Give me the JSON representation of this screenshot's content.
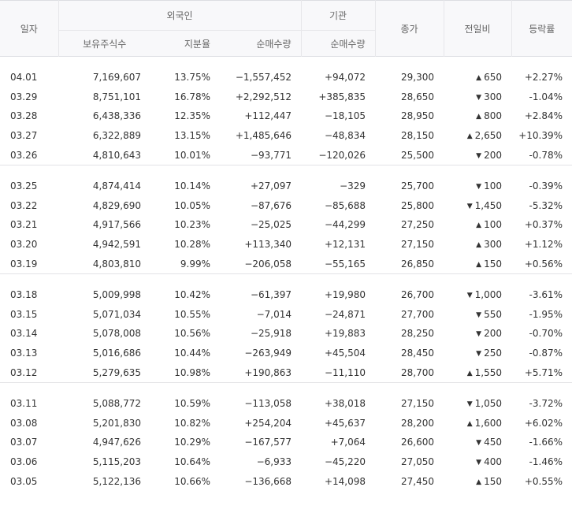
{
  "headers": {
    "date": "일자",
    "foreign": "외국인",
    "institution": "기관",
    "close": "종가",
    "change": "전일비",
    "rate": "등락률",
    "holdings": "보유주식수",
    "share": "지분율",
    "net_foreign": "순매수량",
    "net_inst": "순매수량"
  },
  "groups": [
    [
      {
        "date": "04.01",
        "holdings": "7,169,607",
        "share": "13.75%",
        "foreign": "−1,557,452",
        "foreign_dir": "down",
        "inst": "+94,072",
        "inst_dir": "up",
        "close": "29,300",
        "close_dir": "up",
        "change": "650",
        "change_dir": "up",
        "rate": "+2.27%",
        "rate_dir": "up"
      },
      {
        "date": "03.29",
        "holdings": "8,751,101",
        "share": "16.78%",
        "foreign": "+2,292,512",
        "foreign_dir": "up",
        "inst": "+385,835",
        "inst_dir": "up",
        "close": "28,650",
        "close_dir": "down",
        "change": "300",
        "change_dir": "down",
        "rate": "-1.04%",
        "rate_dir": "down"
      },
      {
        "date": "03.28",
        "holdings": "6,438,336",
        "share": "12.35%",
        "foreign": "+112,447",
        "foreign_dir": "up",
        "inst": "−18,105",
        "inst_dir": "down",
        "close": "28,950",
        "close_dir": "up",
        "change": "800",
        "change_dir": "up",
        "rate": "+2.84%",
        "rate_dir": "up"
      },
      {
        "date": "03.27",
        "holdings": "6,322,889",
        "share": "13.15%",
        "foreign": "+1,485,646",
        "foreign_dir": "up",
        "inst": "−48,834",
        "inst_dir": "down",
        "close": "28,150",
        "close_dir": "up",
        "change": "2,650",
        "change_dir": "up",
        "rate": "+10.39%",
        "rate_dir": "up"
      },
      {
        "date": "03.26",
        "holdings": "4,810,643",
        "share": "10.01%",
        "foreign": "−93,771",
        "foreign_dir": "down",
        "inst": "−120,026",
        "inst_dir": "down",
        "close": "25,500",
        "close_dir": "down",
        "change": "200",
        "change_dir": "down",
        "rate": "-0.78%",
        "rate_dir": "down"
      }
    ],
    [
      {
        "date": "03.25",
        "holdings": "4,874,414",
        "share": "10.14%",
        "foreign": "+27,097",
        "foreign_dir": "up",
        "inst": "−329",
        "inst_dir": "down",
        "close": "25,700",
        "close_dir": "down",
        "change": "100",
        "change_dir": "down",
        "rate": "-0.39%",
        "rate_dir": "down"
      },
      {
        "date": "03.22",
        "holdings": "4,829,690",
        "share": "10.05%",
        "foreign": "−87,676",
        "foreign_dir": "down",
        "inst": "−85,688",
        "inst_dir": "down",
        "close": "25,800",
        "close_dir": "down",
        "change": "1,450",
        "change_dir": "down",
        "rate": "-5.32%",
        "rate_dir": "down"
      },
      {
        "date": "03.21",
        "holdings": "4,917,566",
        "share": "10.23%",
        "foreign": "−25,025",
        "foreign_dir": "down",
        "inst": "−44,299",
        "inst_dir": "down",
        "close": "27,250",
        "close_dir": "up",
        "change": "100",
        "change_dir": "up",
        "rate": "+0.37%",
        "rate_dir": "up"
      },
      {
        "date": "03.20",
        "holdings": "4,942,591",
        "share": "10.28%",
        "foreign": "+113,340",
        "foreign_dir": "up",
        "inst": "+12,131",
        "inst_dir": "up",
        "close": "27,150",
        "close_dir": "up",
        "change": "300",
        "change_dir": "up",
        "rate": "+1.12%",
        "rate_dir": "up"
      },
      {
        "date": "03.19",
        "holdings": "4,803,810",
        "share": "9.99%",
        "foreign": "−206,058",
        "foreign_dir": "down",
        "inst": "−55,165",
        "inst_dir": "down",
        "close": "26,850",
        "close_dir": "up",
        "change": "150",
        "change_dir": "up",
        "rate": "+0.56%",
        "rate_dir": "up"
      }
    ],
    [
      {
        "date": "03.18",
        "holdings": "5,009,998",
        "share": "10.42%",
        "foreign": "−61,397",
        "foreign_dir": "down",
        "inst": "+19,980",
        "inst_dir": "up",
        "close": "26,700",
        "close_dir": "down",
        "change": "1,000",
        "change_dir": "down",
        "rate": "-3.61%",
        "rate_dir": "down"
      },
      {
        "date": "03.15",
        "holdings": "5,071,034",
        "share": "10.55%",
        "foreign": "−7,014",
        "foreign_dir": "down",
        "inst": "−24,871",
        "inst_dir": "down",
        "close": "27,700",
        "close_dir": "down",
        "change": "550",
        "change_dir": "down",
        "rate": "-1.95%",
        "rate_dir": "down"
      },
      {
        "date": "03.14",
        "holdings": "5,078,008",
        "share": "10.56%",
        "foreign": "−25,918",
        "foreign_dir": "down",
        "inst": "+19,883",
        "inst_dir": "up",
        "close": "28,250",
        "close_dir": "down",
        "change": "200",
        "change_dir": "down",
        "rate": "-0.70%",
        "rate_dir": "down"
      },
      {
        "date": "03.13",
        "holdings": "5,016,686",
        "share": "10.44%",
        "foreign": "−263,949",
        "foreign_dir": "down",
        "inst": "+45,504",
        "inst_dir": "up",
        "close": "28,450",
        "close_dir": "down",
        "change": "250",
        "change_dir": "down",
        "rate": "-0.87%",
        "rate_dir": "down"
      },
      {
        "date": "03.12",
        "holdings": "5,279,635",
        "share": "10.98%",
        "foreign": "+190,863",
        "foreign_dir": "up",
        "inst": "−11,110",
        "inst_dir": "down",
        "close": "28,700",
        "close_dir": "up",
        "change": "1,550",
        "change_dir": "up",
        "rate": "+5.71%",
        "rate_dir": "up"
      }
    ],
    [
      {
        "date": "03.11",
        "holdings": "5,088,772",
        "share": "10.59%",
        "foreign": "−113,058",
        "foreign_dir": "down",
        "inst": "+38,018",
        "inst_dir": "up",
        "close": "27,150",
        "close_dir": "down",
        "change": "1,050",
        "change_dir": "down",
        "rate": "-3.72%",
        "rate_dir": "down"
      },
      {
        "date": "03.08",
        "holdings": "5,201,830",
        "share": "10.82%",
        "foreign": "+254,204",
        "foreign_dir": "up",
        "inst": "+45,637",
        "inst_dir": "up",
        "close": "28,200",
        "close_dir": "up",
        "change": "1,600",
        "change_dir": "up",
        "rate": "+6.02%",
        "rate_dir": "up"
      },
      {
        "date": "03.07",
        "holdings": "4,947,626",
        "share": "10.29%",
        "foreign": "−167,577",
        "foreign_dir": "down",
        "inst": "+7,064",
        "inst_dir": "up",
        "close": "26,600",
        "close_dir": "down",
        "change": "450",
        "change_dir": "down",
        "rate": "-1.66%",
        "rate_dir": "down"
      },
      {
        "date": "03.06",
        "holdings": "5,115,203",
        "share": "10.64%",
        "foreign": "−6,933",
        "foreign_dir": "down",
        "inst": "−45,220",
        "inst_dir": "down",
        "close": "27,050",
        "close_dir": "down",
        "change": "400",
        "change_dir": "down",
        "rate": "-1.46%",
        "rate_dir": "down"
      },
      {
        "date": "03.05",
        "holdings": "5,122,136",
        "share": "10.66%",
        "foreign": "−136,668",
        "foreign_dir": "down",
        "inst": "+14,098",
        "inst_dir": "up",
        "close": "27,450",
        "close_dir": "up",
        "change": "150",
        "change_dir": "up",
        "rate": "+0.55%",
        "rate_dir": "up"
      }
    ]
  ],
  "colors": {
    "up": "#e2241f",
    "down": "#2660c9",
    "text": "#333333"
  },
  "icons": {
    "up": "up-triangle-icon",
    "down": "down-triangle-icon"
  }
}
